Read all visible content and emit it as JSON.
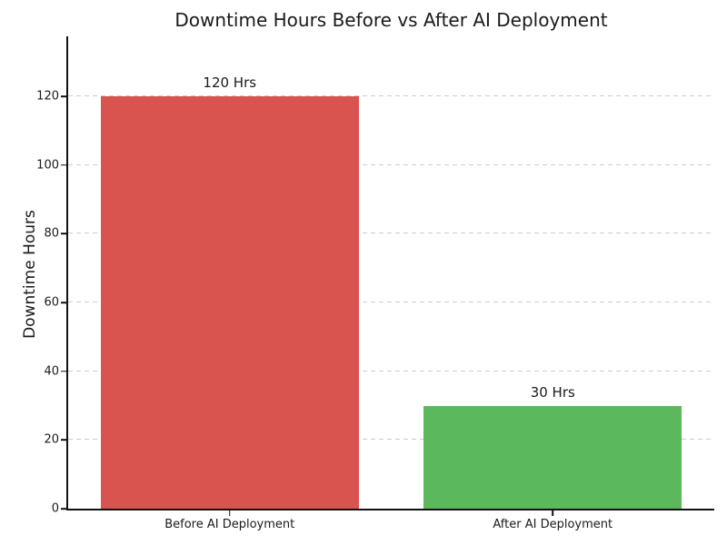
{
  "chart_data": {
    "type": "bar",
    "title": "Downtime Hours Before vs After AI Deployment",
    "xlabel": "",
    "ylabel": "Downtime Hours",
    "categories": [
      "Before AI Deployment",
      "After AI Deployment"
    ],
    "values": [
      120,
      30
    ],
    "value_labels": [
      "120 Hrs",
      "30 Hrs"
    ],
    "bar_colors": [
      "#d9534f",
      "#5cb85c"
    ],
    "yticks": [
      0,
      20,
      40,
      60,
      80,
      100,
      120
    ],
    "ylim": [
      0,
      137.5
    ],
    "grid": "horizontal-dashed",
    "grid_color": "#cccccc",
    "legend_position": "none",
    "background_color": "#ffffff",
    "text_color": "#1a1a1a"
  }
}
